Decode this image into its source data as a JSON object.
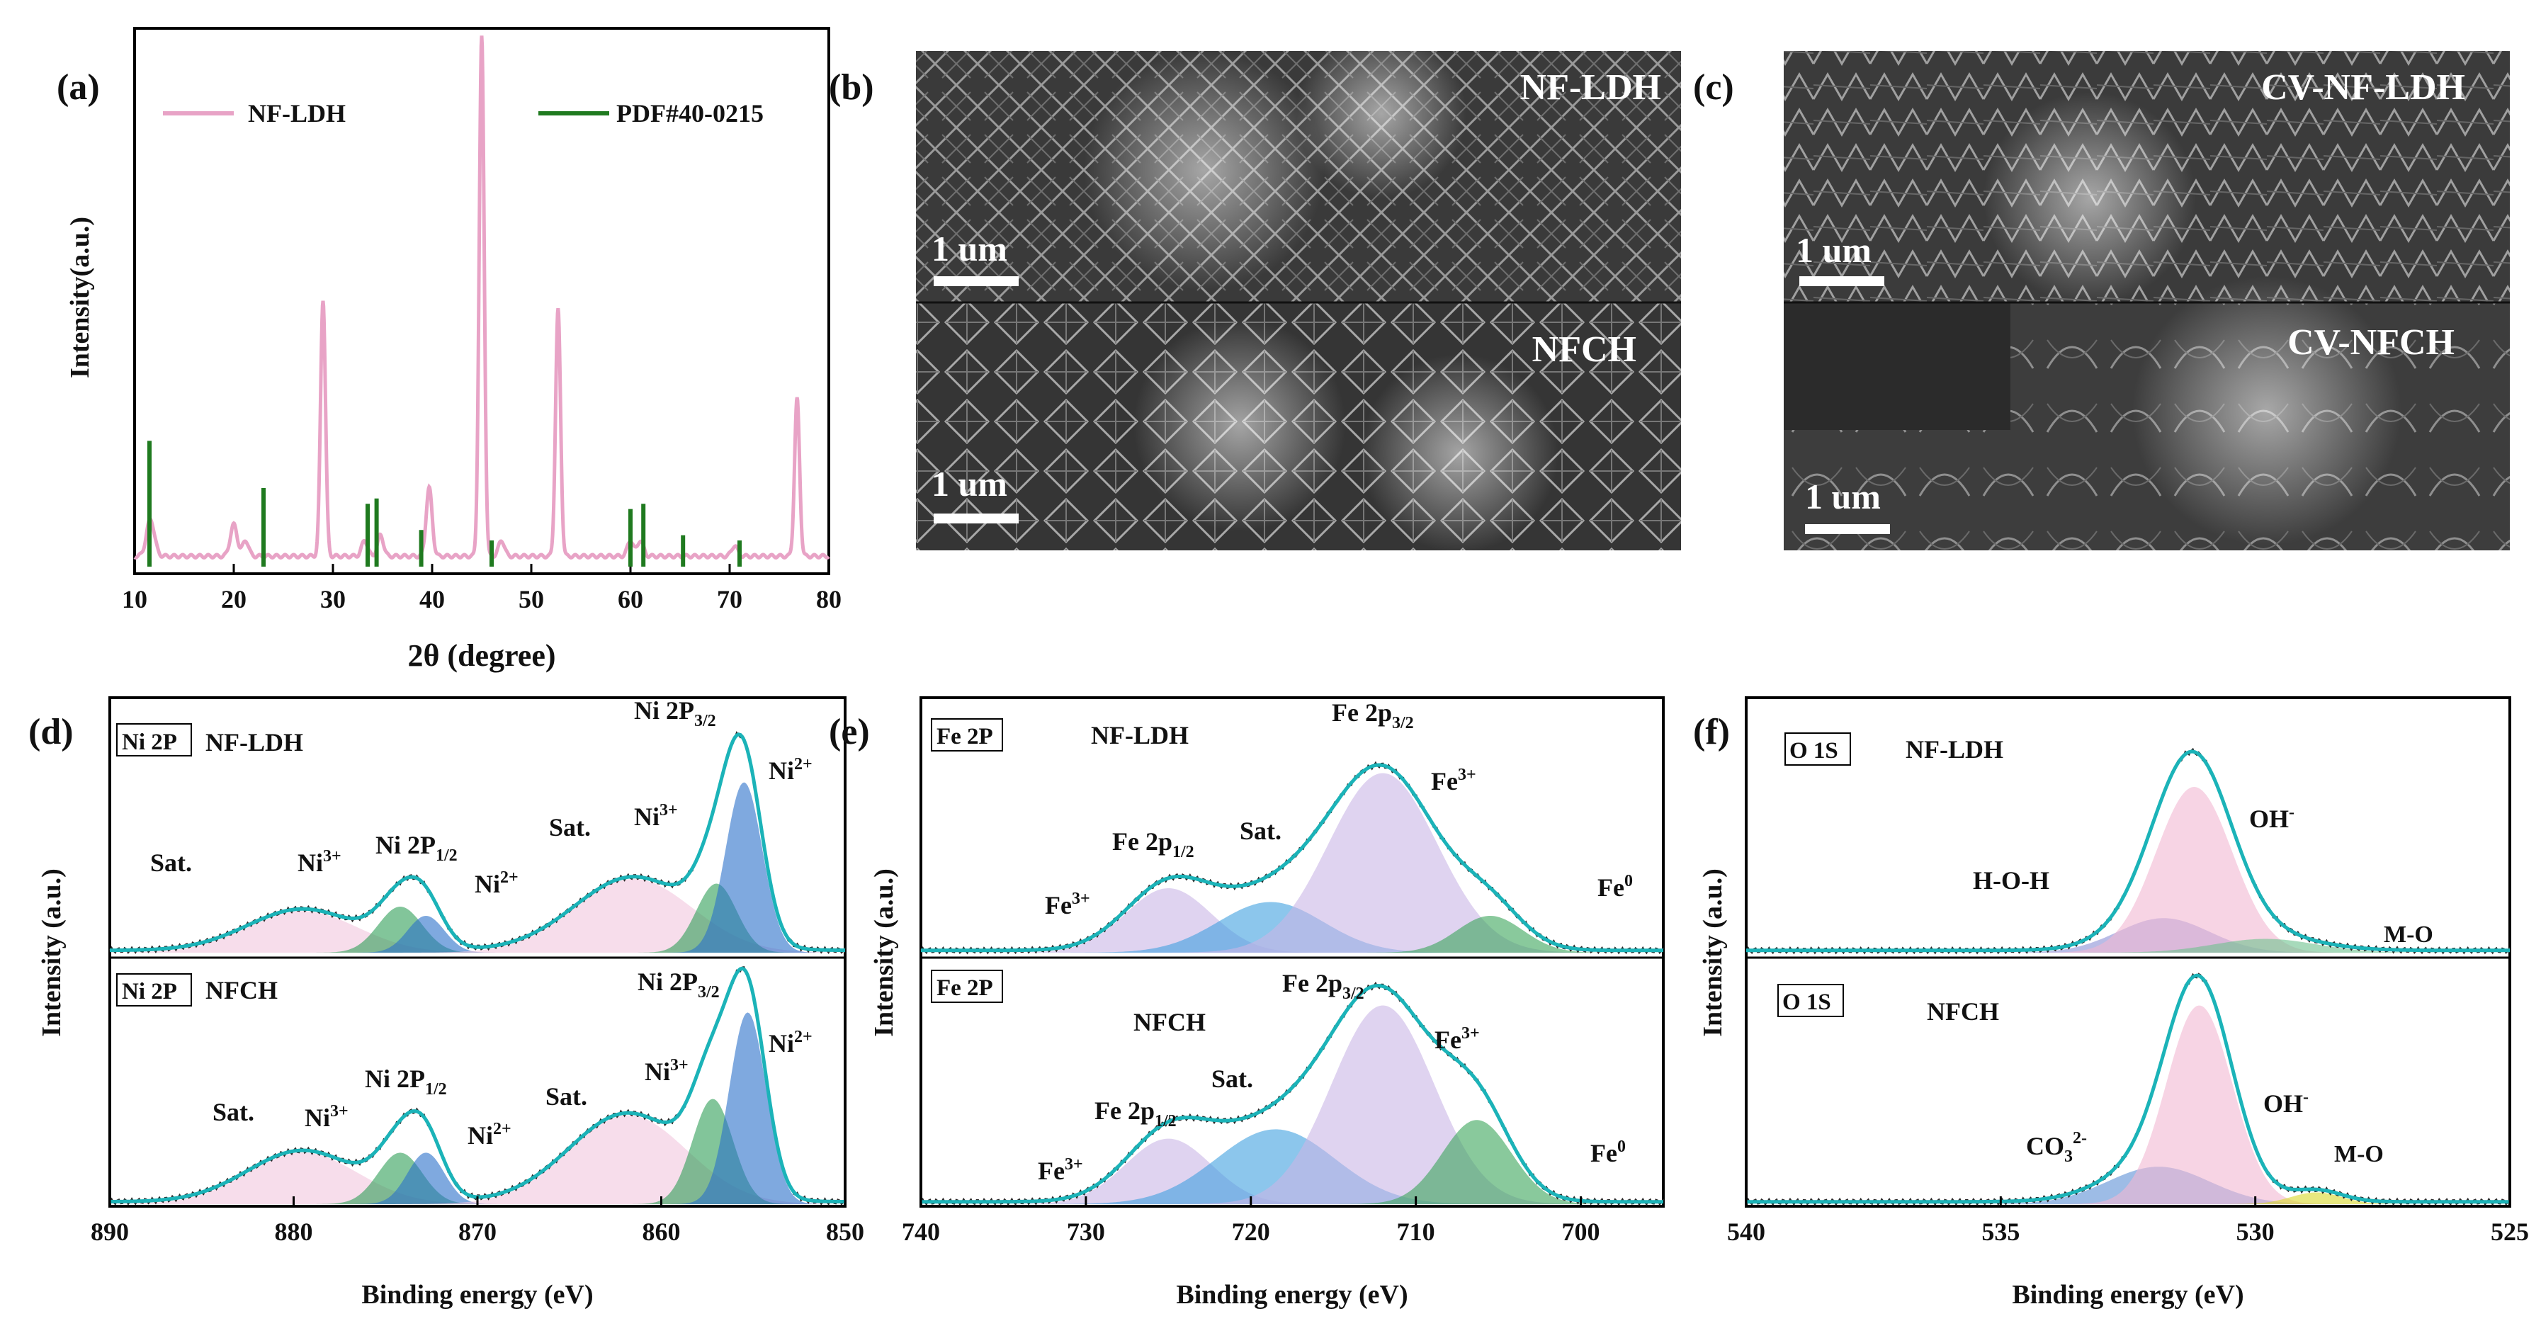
{
  "colors": {
    "xrd_sample": "#e8a3c6",
    "xrd_reference": "#1f7a1f",
    "xps_envelope": "#1bb3b8",
    "raw_data": "#2a2a2a",
    "sat_fill": "#f2c6de",
    "ni3_fill": "#2e9e57",
    "ni2_fill": "#2a6fc9",
    "fe_main_fill": "#c9b5e6",
    "fe_sat_fill": "#3fa0e0",
    "fe0_fill": "#3aa55a",
    "oh_fill": "#f2b8d2",
    "hoh_fill": "#8b8fd6",
    "mo_fill": "#6cc28e",
    "mo_fill_nfch": "#d9d92a"
  },
  "chart_data": [
    {
      "panel": "(a)",
      "type": "line",
      "xlabel": "2θ (degree)",
      "ylabel": "Intensity(a.u.)",
      "xlim": [
        10,
        80
      ],
      "xticks": [
        10,
        20,
        30,
        40,
        50,
        60,
        70,
        80
      ],
      "ylim": [
        0,
        100
      ],
      "legend": "top",
      "series": [
        {
          "name": "NF-LDH",
          "kind": "line",
          "baseline": 2,
          "peaks": [
            {
              "x": 11.6,
              "h": 7,
              "w": 0.4
            },
            {
              "x": 20.0,
              "h": 6,
              "w": 0.35
            },
            {
              "x": 21.2,
              "h": 3,
              "w": 0.3
            },
            {
              "x": 29.0,
              "h": 49,
              "w": 0.25
            },
            {
              "x": 33.2,
              "h": 3,
              "w": 0.3
            },
            {
              "x": 34.8,
              "h": 4,
              "w": 0.3
            },
            {
              "x": 39.7,
              "h": 13,
              "w": 0.3
            },
            {
              "x": 45.0,
              "h": 99,
              "w": 0.25
            },
            {
              "x": 47.0,
              "h": 3,
              "w": 0.3
            },
            {
              "x": 52.7,
              "h": 47,
              "w": 0.25
            },
            {
              "x": 60.0,
              "h": 3,
              "w": 0.3
            },
            {
              "x": 61.0,
              "h": 3,
              "w": 0.3
            },
            {
              "x": 70.5,
              "h": 2,
              "w": 0.3
            },
            {
              "x": 76.8,
              "h": 30,
              "w": 0.25
            }
          ]
        },
        {
          "name": "PDF#40-0215",
          "kind": "sticks",
          "x": [
            11.5,
            23.0,
            33.5,
            34.4,
            38.9,
            46.0,
            60.0,
            61.3,
            65.3,
            71.0
          ],
          "values": [
            24,
            15,
            12,
            13,
            7,
            5,
            11,
            12,
            6,
            5
          ]
        }
      ]
    },
    {
      "panel": "(d)",
      "type": "line",
      "xlabel": "Binding energy (eV)",
      "ylabel": "Intensity (a.u.)",
      "xlim": [
        890,
        850
      ],
      "xticks": [
        890,
        880,
        870,
        860,
        850
      ],
      "subplots": [
        {
          "tag": "Ni 2P",
          "sample": "NF-LDH",
          "components": [
            {
              "name": "Sat.",
              "center": 879.5,
              "height": 0.18,
              "sigma": 3.0,
              "color": "#f2c6de"
            },
            {
              "name": "Ni3+",
              "center": 874.2,
              "height": 0.2,
              "sigma": 1.2,
              "color": "#2e9e57"
            },
            {
              "name": "Ni2+",
              "center": 872.8,
              "height": 0.16,
              "sigma": 1.0,
              "color": "#2a6fc9"
            },
            {
              "name": "Sat.",
              "center": 861.5,
              "height": 0.32,
              "sigma": 3.2,
              "color": "#f2c6de"
            },
            {
              "name": "Ni3+",
              "center": 857.0,
              "height": 0.3,
              "sigma": 1.1,
              "color": "#2e9e57"
            },
            {
              "name": "Ni2+",
              "center": 855.5,
              "height": 0.74,
              "sigma": 1.0,
              "color": "#2a6fc9"
            }
          ]
        },
        {
          "tag": "Ni 2P",
          "sample": "NFCH",
          "components": [
            {
              "name": "Sat.",
              "center": 879.5,
              "height": 0.22,
              "sigma": 3.0,
              "color": "#f2c6de"
            },
            {
              "name": "Ni3+",
              "center": 874.2,
              "height": 0.22,
              "sigma": 1.2,
              "color": "#2e9e57"
            },
            {
              "name": "Ni2+",
              "center": 872.8,
              "height": 0.22,
              "sigma": 1.0,
              "color": "#2a6fc9"
            },
            {
              "name": "Sat.",
              "center": 861.8,
              "height": 0.38,
              "sigma": 3.2,
              "color": "#f2c6de"
            },
            {
              "name": "Ni3+",
              "center": 857.2,
              "height": 0.45,
              "sigma": 1.1,
              "color": "#2e9e57"
            },
            {
              "name": "Ni2+",
              "center": 855.3,
              "height": 0.82,
              "sigma": 1.0,
              "color": "#2a6fc9"
            }
          ]
        }
      ]
    },
    {
      "panel": "(e)",
      "type": "line",
      "xlabel": "Binding energy (eV)",
      "ylabel": "Intensity (a.u.)",
      "xlim": [
        740,
        695
      ],
      "xticks": [
        740,
        730,
        720,
        710,
        700
      ],
      "subplots": [
        {
          "tag": "Fe 2P",
          "sample": "NF-LDH",
          "components": [
            {
              "name": "Fe 2p1/2",
              "center": 725.0,
              "height": 0.28,
              "sigma": 2.6,
              "color": "#c9b5e6"
            },
            {
              "name": "Sat.",
              "center": 718.8,
              "height": 0.22,
              "sigma": 3.2,
              "color": "#3fa0e0"
            },
            {
              "name": "Fe 2p3/2",
              "center": 712.0,
              "height": 0.78,
              "sigma": 3.3,
              "color": "#c9b5e6"
            },
            {
              "name": "Fe0",
              "center": 705.5,
              "height": 0.16,
              "sigma": 2.0,
              "color": "#3aa55a"
            }
          ]
        },
        {
          "tag": "Fe 2P",
          "sample": "NFCH",
          "components": [
            {
              "name": "Fe 2p1/2",
              "center": 725.0,
              "height": 0.28,
              "sigma": 2.6,
              "color": "#c9b5e6"
            },
            {
              "name": "Sat.",
              "center": 718.5,
              "height": 0.32,
              "sigma": 3.6,
              "color": "#3fa0e0"
            },
            {
              "name": "Fe 2p3/2",
              "center": 712.0,
              "height": 0.85,
              "sigma": 3.1,
              "color": "#c9b5e6"
            },
            {
              "name": "Fe0",
              "center": 706.3,
              "height": 0.36,
              "sigma": 2.1,
              "color": "#3aa55a"
            }
          ]
        }
      ]
    },
    {
      "panel": "(f)",
      "type": "line",
      "xlabel": "Binding energy (eV)",
      "ylabel": "Intensity (a.u.)",
      "xlim": [
        540,
        525
      ],
      "xticks": [
        540,
        535,
        530,
        525
      ],
      "subplots": [
        {
          "tag": "O 1S",
          "sample": "NF-LDH",
          "components": [
            {
              "name": "H-O-H",
              "center": 531.8,
              "height": 0.15,
              "sigma": 0.9,
              "color": "#8b8fd6"
            },
            {
              "name": "OH-",
              "center": 531.2,
              "height": 0.72,
              "sigma": 0.75,
              "color": "#f2b8d2"
            },
            {
              "name": "M-O",
              "center": 529.8,
              "height": 0.06,
              "sigma": 1.0,
              "color": "#6cc28e"
            }
          ]
        },
        {
          "tag": "O 1S",
          "sample": "NFCH",
          "components": [
            {
              "name": "CO3 2-",
              "center": 531.9,
              "height": 0.16,
              "sigma": 1.0,
              "color": "#5b8fd6"
            },
            {
              "name": "OH-",
              "center": 531.1,
              "height": 0.85,
              "sigma": 0.65,
              "color": "#f2b8d2"
            },
            {
              "name": "M-O",
              "center": 528.8,
              "height": 0.05,
              "sigma": 0.5,
              "color": "#d9d92a"
            }
          ]
        }
      ]
    }
  ],
  "labels": {
    "panel_a": "(a)",
    "panel_b": "(b)",
    "panel_c": "(c)",
    "panel_d": "(d)",
    "panel_e": "(e)",
    "panel_f": "(f)",
    "a_legend_sample": "NF-LDH",
    "a_legend_ref": "PDF#40-0215",
    "a_ylabel": "Intensity(a.u.)",
    "a_xlabel": "2θ (degree)",
    "sem_b_top": "NF-LDH",
    "sem_b_bottom": "NFCH",
    "sem_c_top": "CV-NF-LDH",
    "sem_c_bottom": "CV-NFCH",
    "scale_bar": "1 um",
    "xps_ylabel": "Intensity (a.u.)",
    "xps_xlabel": "Binding energy (eV)",
    "ni_tag": "Ni 2P",
    "fe_tag": "Fe 2P",
    "o_tag": "O 1S",
    "sample_ldh": "NF-LDH",
    "sample_nfch": "NFCH",
    "ni_2p32": "Ni 2P",
    "ni_2p32_sub": "3/2",
    "ni_2p12": "Ni 2P",
    "ni_2p12_sub": "1/2",
    "ni": "Ni",
    "sup_3": "3+",
    "sup_2": "2+",
    "sat": "Sat.",
    "fe_2p": "Fe 2p",
    "sub_32": "3/2",
    "sub_12": "1/2",
    "fe": "Fe",
    "sup_0": "0",
    "hoh": "H-O-H",
    "oh": "OH",
    "sup_minus": "-",
    "mo": "M-O",
    "co3": "CO",
    "sub_3": "3",
    "sup_2minus": "2-"
  }
}
